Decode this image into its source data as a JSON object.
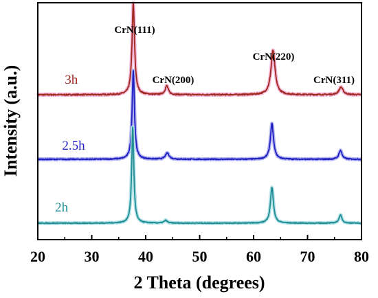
{
  "chart_data": {
    "type": "line",
    "xlabel": "2 Theta (degrees)",
    "ylabel": "Intensity (a.u.)",
    "xlim": [
      20,
      80
    ],
    "xticks": [
      20,
      30,
      40,
      50,
      60,
      70,
      80
    ],
    "y_tick_labels": false,
    "grid": false,
    "peaks": [
      {
        "label": "CrN(111)",
        "x": 37.6
      },
      {
        "label": "CrN(200)",
        "x": 43.7
      },
      {
        "label": "CrN(220)",
        "x": 63.5
      },
      {
        "label": "CrN(311)",
        "x": 76.1
      }
    ],
    "series": [
      {
        "name": "3h",
        "color": "#a0281e",
        "glow": "#f2b6d6",
        "baseline": 0.16,
        "noise": 0.01,
        "peaks": [
          [
            37.7,
            0.72,
            0.28
          ],
          [
            43.9,
            0.07,
            0.35
          ],
          [
            63.6,
            0.35,
            0.45
          ],
          [
            76.2,
            0.06,
            0.45
          ]
        ],
        "label_x": 25.0
      },
      {
        "name": "2.5h",
        "color": "#1f1fc4",
        "glow": "#b4b4f0",
        "baseline": 0.12,
        "noise": 0.008,
        "peaks": [
          [
            37.7,
            0.7,
            0.26
          ],
          [
            44.0,
            0.05,
            0.4
          ],
          [
            63.4,
            0.28,
            0.35
          ],
          [
            76.1,
            0.07,
            0.35
          ]
        ],
        "label_x": 24.5
      },
      {
        "name": "2h",
        "color": "#1f8d94",
        "glow": "#b2e1e6",
        "baseline": 0.03,
        "noise": 0.006,
        "peaks": [
          [
            37.6,
            0.72,
            0.24
          ],
          [
            43.7,
            0.02,
            0.35
          ],
          [
            63.4,
            0.27,
            0.33
          ],
          [
            76.1,
            0.06,
            0.33
          ]
        ],
        "label_x": 23.2
      }
    ]
  }
}
